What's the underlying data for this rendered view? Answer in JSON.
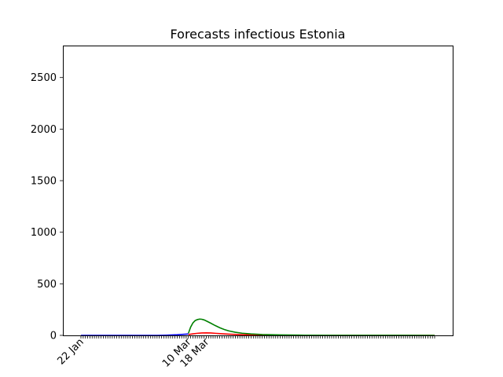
{
  "chart_data": {
    "type": "line",
    "title": "Forecasts infectious Estonia",
    "xlabel": "",
    "ylabel": "",
    "x_start": "22 Jan",
    "x_end": "28 Jun",
    "x_labels": [
      {
        "label": "22 Jan",
        "date": "22 Jan"
      },
      {
        "label": "10 Mar",
        "date": "10 Mar"
      },
      {
        "label": "18 Mar",
        "date": "18 Mar"
      }
    ],
    "ylim": [
      0,
      2810
    ],
    "yticks": [
      0,
      500,
      1000,
      1500,
      2000,
      2500
    ],
    "grid": false,
    "legend": "none",
    "series": [
      {
        "color": "#0000ff",
        "points": [
          [
            "22 Jan",
            0
          ],
          [
            "1 Feb",
            0
          ],
          [
            "15 Feb",
            0
          ],
          [
            "25 Feb",
            0
          ],
          [
            "29 Feb",
            2
          ],
          [
            "3 Mar",
            4
          ],
          [
            "5 Mar",
            6
          ],
          [
            "7 Mar",
            9
          ],
          [
            "9 Mar",
            12
          ],
          [
            "10 Mar",
            14
          ]
        ]
      },
      {
        "color": "#ff0000",
        "points": [
          [
            "10 Mar",
            8
          ],
          [
            "12 Mar",
            15
          ],
          [
            "14 Mar",
            20
          ],
          [
            "16 Mar",
            23
          ],
          [
            "18 Mar",
            24
          ],
          [
            "20 Mar",
            23
          ],
          [
            "22 Mar",
            20
          ],
          [
            "25 Mar",
            16
          ],
          [
            "28 Mar",
            12
          ],
          [
            "1 Apr",
            8
          ],
          [
            "5 Apr",
            5
          ],
          [
            "10 Apr",
            3
          ],
          [
            "20 Apr",
            1
          ],
          [
            "1 May",
            0
          ],
          [
            "28 Jun",
            0
          ]
        ]
      },
      {
        "color": "#008000",
        "points": [
          [
            "10 Mar",
            20
          ],
          [
            "11 Mar",
            80
          ],
          [
            "12 Mar",
            120
          ],
          [
            "13 Mar",
            143
          ],
          [
            "14 Mar",
            153
          ],
          [
            "15 Mar",
            158
          ],
          [
            "16 Mar",
            156
          ],
          [
            "17 Mar",
            150
          ],
          [
            "18 Mar",
            140
          ],
          [
            "20 Mar",
            118
          ],
          [
            "22 Mar",
            95
          ],
          [
            "24 Mar",
            74
          ],
          [
            "26 Mar",
            57
          ],
          [
            "28 Mar",
            44
          ],
          [
            "31 Mar",
            30
          ],
          [
            "3 Apr",
            21
          ],
          [
            "7 Apr",
            14
          ],
          [
            "12 Apr",
            8
          ],
          [
            "20 Apr",
            4
          ],
          [
            "1 May",
            2
          ],
          [
            "15 May",
            1
          ],
          [
            "28 Jun",
            0
          ]
        ]
      }
    ]
  }
}
